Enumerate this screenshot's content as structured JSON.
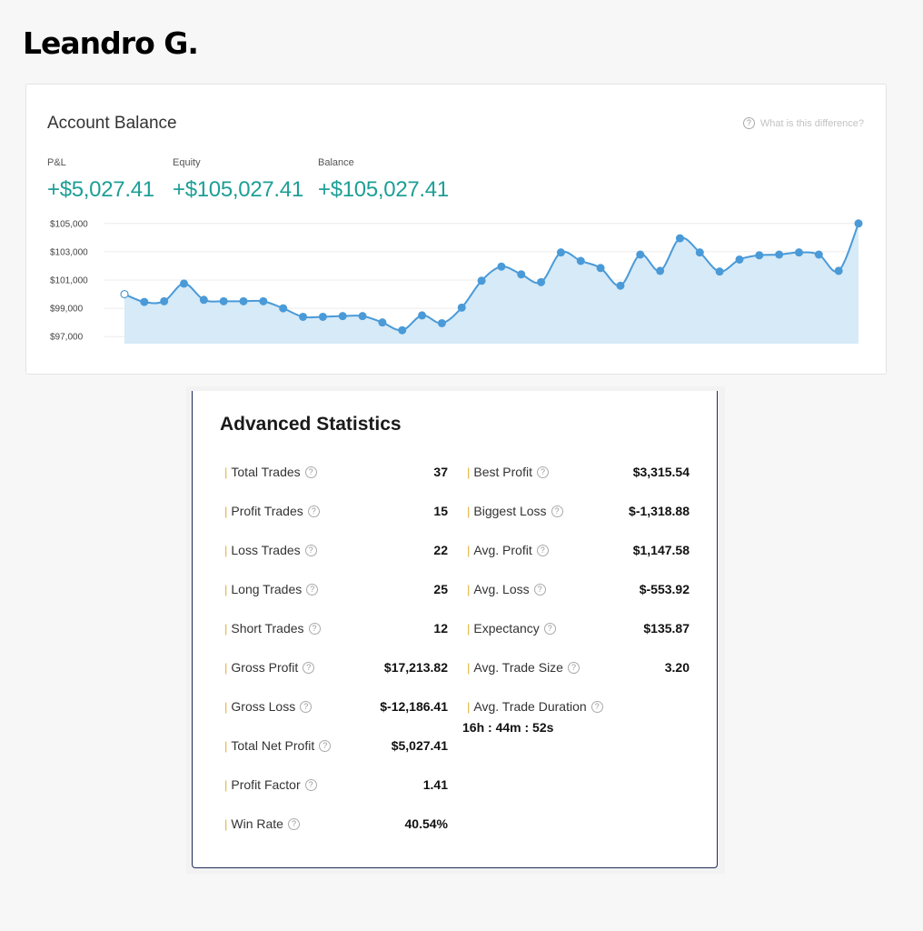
{
  "trader": {
    "name": "Leandro G."
  },
  "account_balance": {
    "title": "Account Balance",
    "help_text": "What is this difference?",
    "help_icon": "question-circle-icon",
    "metrics": [
      {
        "label": "P&L",
        "value": "+$5,027.41"
      },
      {
        "label": "Equity",
        "value": "+$105,027.41"
      },
      {
        "label": "Balance",
        "value": "+$105,027.41"
      }
    ],
    "accent_color": "#1d9f96"
  },
  "chart_data": {
    "type": "area",
    "title": "",
    "xlabel": "",
    "ylabel": "",
    "ylim": [
      96500,
      105500
    ],
    "y_ticks": [
      "$105,000",
      "$103,000",
      "$101,000",
      "$99,000",
      "$97,000"
    ],
    "y_tick_values": [
      105000,
      103000,
      101000,
      99000,
      97000
    ],
    "grid": true,
    "line_color": "#4a9ad8",
    "fill_color": "#d6eaf7",
    "values": [
      100000,
      99450,
      99500,
      100750,
      99600,
      99500,
      99500,
      99500,
      99000,
      98400,
      98400,
      98450,
      98450,
      98000,
      97450,
      98500,
      97950,
      99050,
      100950,
      101950,
      101400,
      100850,
      102950,
      102350,
      101850,
      100600,
      102800,
      101650,
      103950,
      102950,
      101600,
      102450,
      102750,
      102800,
      102950,
      102800,
      101650,
      105000
    ]
  },
  "advanced_statistics": {
    "title": "Advanced Statistics",
    "left": [
      {
        "label": "Total Trades",
        "value": "37"
      },
      {
        "label": "Profit Trades",
        "value": "15"
      },
      {
        "label": "Loss Trades",
        "value": "22"
      },
      {
        "label": "Long Trades",
        "value": "25"
      },
      {
        "label": "Short Trades",
        "value": "12"
      },
      {
        "label": "Gross Profit",
        "value": "$17,213.82"
      },
      {
        "label": "Gross Loss",
        "value": "$-12,186.41"
      },
      {
        "label": "Total Net Profit",
        "value": "$5,027.41"
      },
      {
        "label": "Profit Factor",
        "value": "1.41"
      },
      {
        "label": "Win Rate",
        "value": "40.54%"
      }
    ],
    "right": [
      {
        "label": "Best Profit",
        "value": "$3,315.54"
      },
      {
        "label": "Biggest Loss",
        "value": "$-1,318.88"
      },
      {
        "label": "Avg. Profit",
        "value": "$1,147.58"
      },
      {
        "label": "Avg. Loss",
        "value": "$-553.92"
      },
      {
        "label": "Expectancy",
        "value": "$135.87"
      },
      {
        "label": "Avg. Trade Size",
        "value": "3.20"
      },
      {
        "label": "Avg. Trade Duration",
        "value": "16h : 44m : 52s"
      }
    ],
    "bar_glyph": "|",
    "info_glyph": "?"
  }
}
